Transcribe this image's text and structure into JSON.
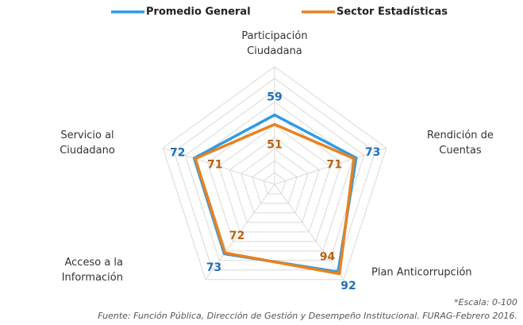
{
  "chart_data": {
    "type": "radar",
    "categories": [
      [
        "Participación",
        "Ciudadana"
      ],
      [
        "Rendición de",
        "Cuentas"
      ],
      [
        "Plan Anticorrupción"
      ],
      [
        "Acceso a la",
        "Información"
      ],
      [
        "Servicio al",
        "Ciudadano"
      ]
    ],
    "series": [
      {
        "name": "Promedio General",
        "color": "#2e9be6",
        "label_color": "#1f6fb8",
        "values": [
          59,
          73,
          92,
          73,
          72
        ]
      },
      {
        "name": "Sector Estadísticas",
        "color": "#e8821e",
        "label_color": "#b8620f",
        "values": [
          51,
          71,
          94,
          72,
          71
        ]
      }
    ],
    "rlim": [
      0,
      100
    ],
    "rticks": [
      10,
      20,
      30,
      40,
      50,
      60,
      70,
      80,
      90,
      100
    ],
    "grid": true,
    "legend": "top",
    "notes": [
      "*Escala: 0-100",
      "Fuente: Función Pública, Dirección de Gestión y Desempeño Institucional. FURAG-Febrero 2016."
    ]
  }
}
